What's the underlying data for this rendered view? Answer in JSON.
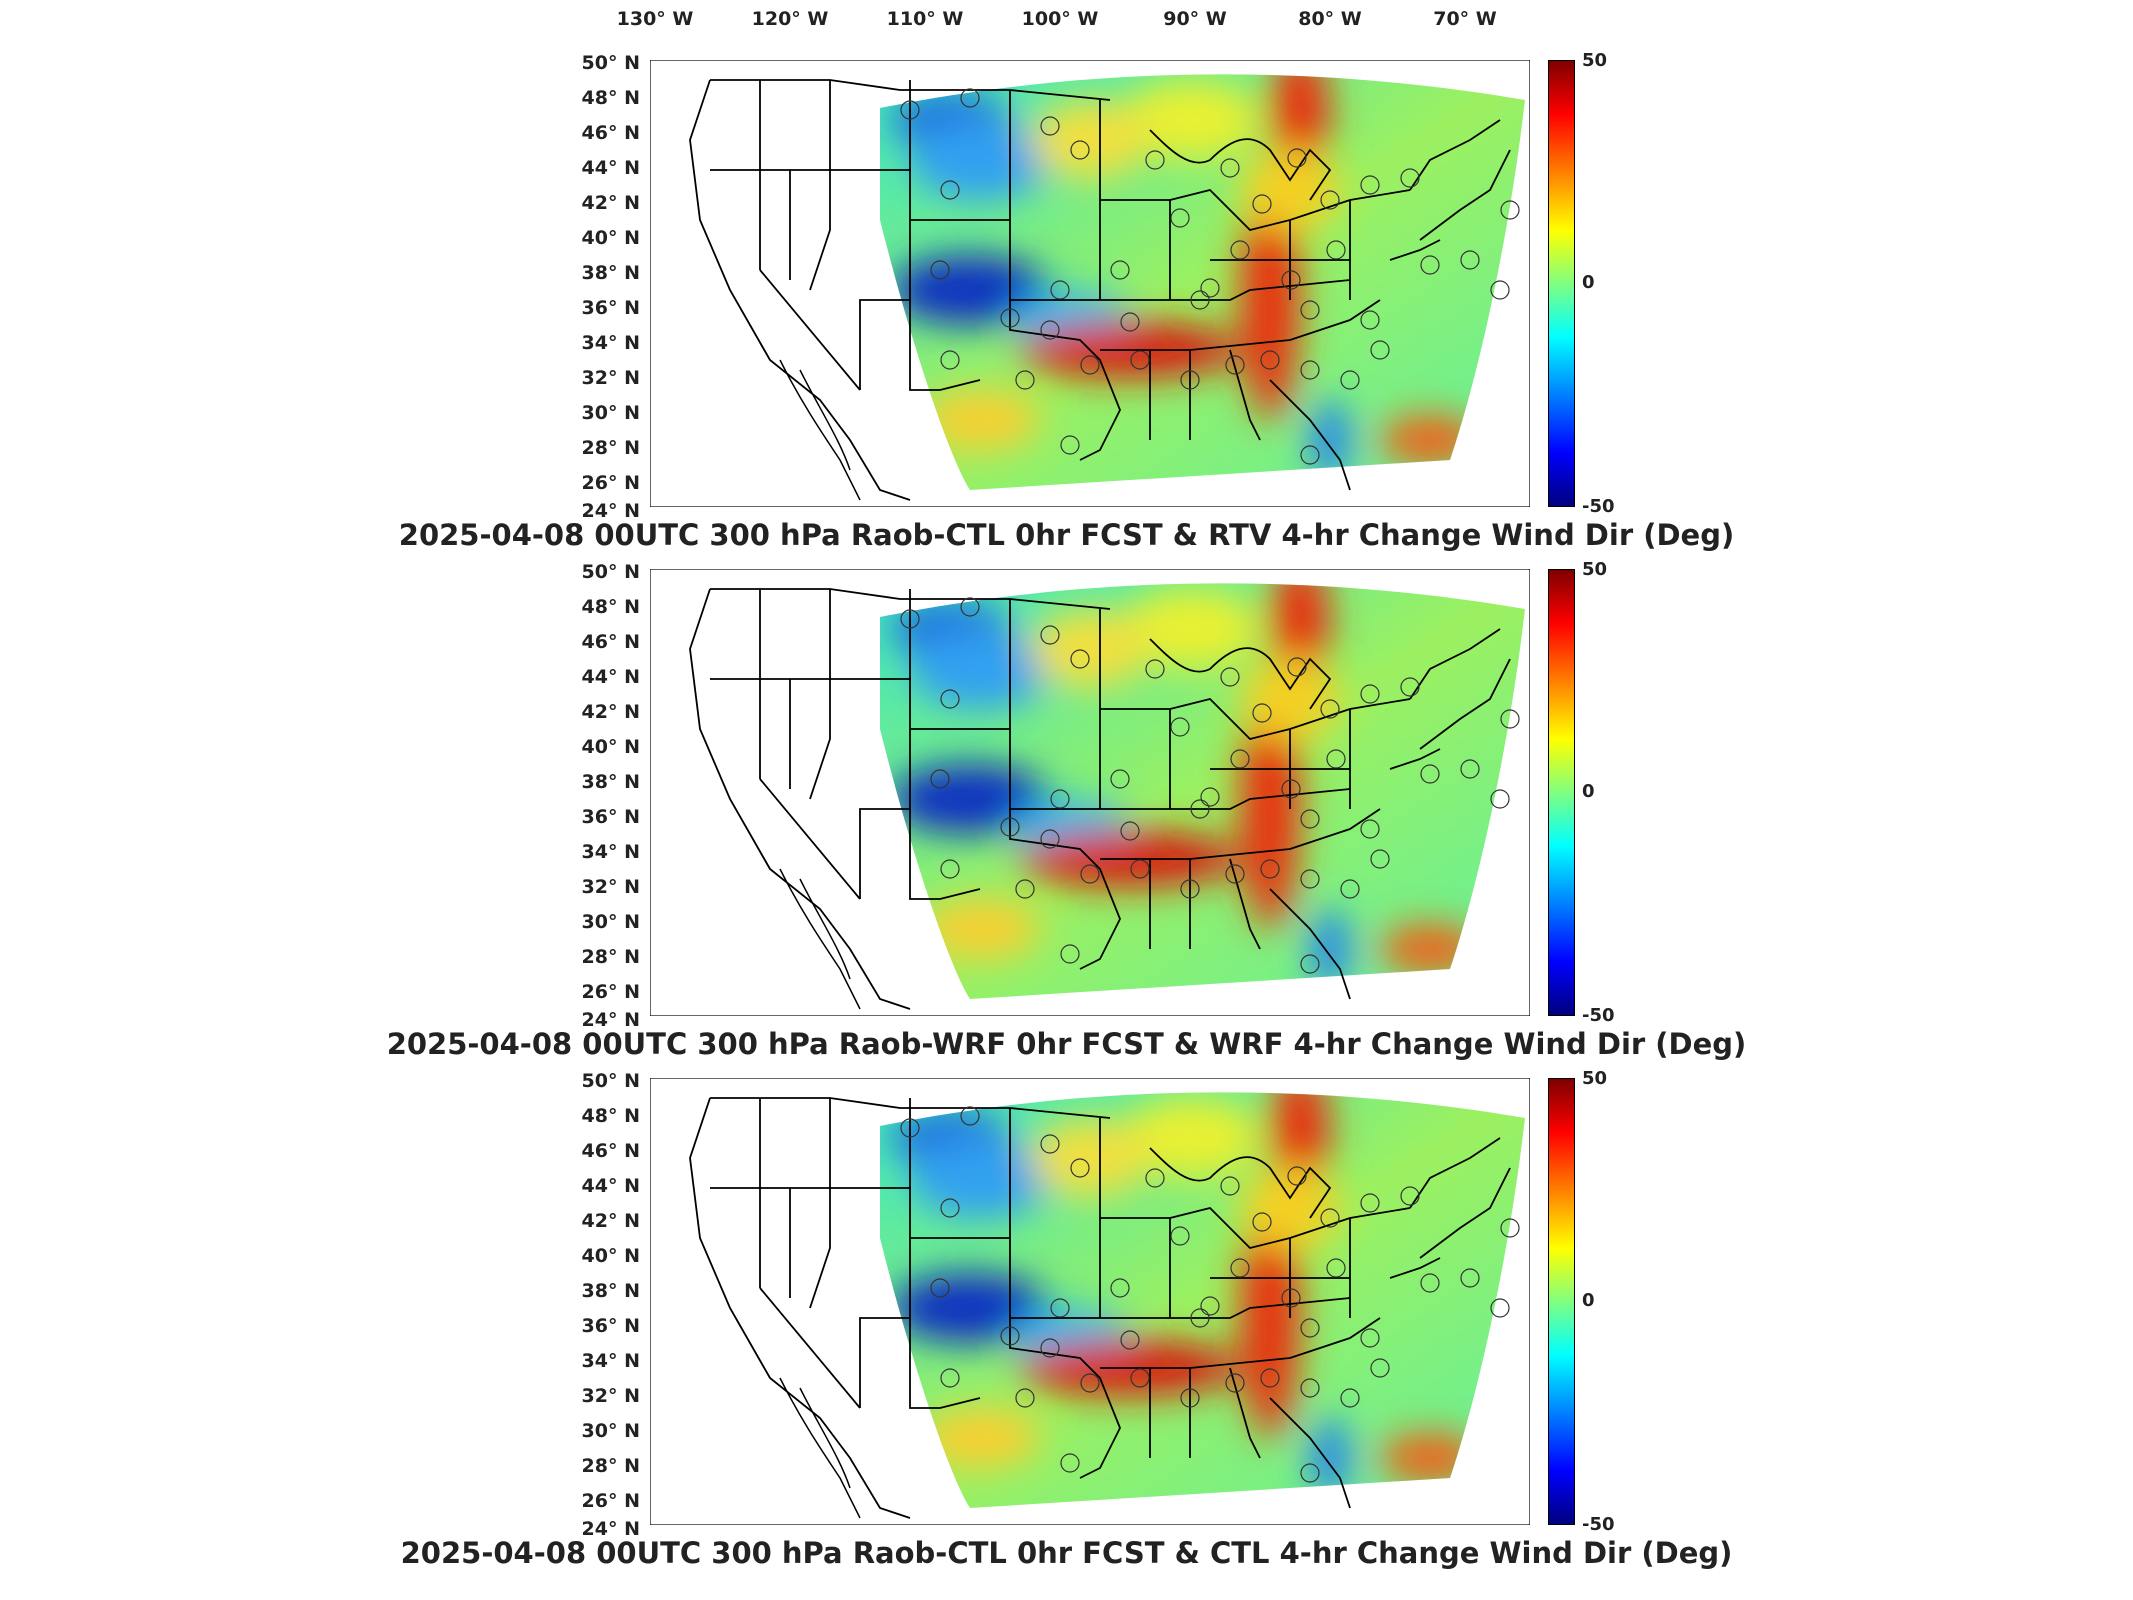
{
  "lon_labels": [
    "130° W",
    "120° W",
    "110° W",
    "100° W",
    "90° W",
    "80° W",
    "70° W"
  ],
  "lat_labels": [
    "50° N",
    "48° N",
    "46° N",
    "44° N",
    "42° N",
    "40° N",
    "38° N",
    "36° N",
    "34° N",
    "32° N",
    "30° N",
    "28° N",
    "26° N",
    "24° N"
  ],
  "colorbar": {
    "max": "50",
    "mid": "0",
    "min": "-50",
    "colors": [
      "#7f0000",
      "#ff0000",
      "#ff8000",
      "#ffff00",
      "#80ff80",
      "#00ffff",
      "#0080ff",
      "#0000ff",
      "#00007f"
    ]
  },
  "panels": [
    {
      "title": "2025-04-08 00UTC 300 hPa Raob-CTL 0hr FCST & RTV 4-hr Change Wind Dir (Deg)"
    },
    {
      "title": "2025-04-08 00UTC 300 hPa Raob-WRF 0hr FCST & WRF 4-hr Change Wind Dir (Deg)"
    },
    {
      "title": "2025-04-08 00UTC 300 hPa Raob-CTL 0hr FCST & CTL 4-hr Change Wind Dir (Deg)"
    }
  ]
}
